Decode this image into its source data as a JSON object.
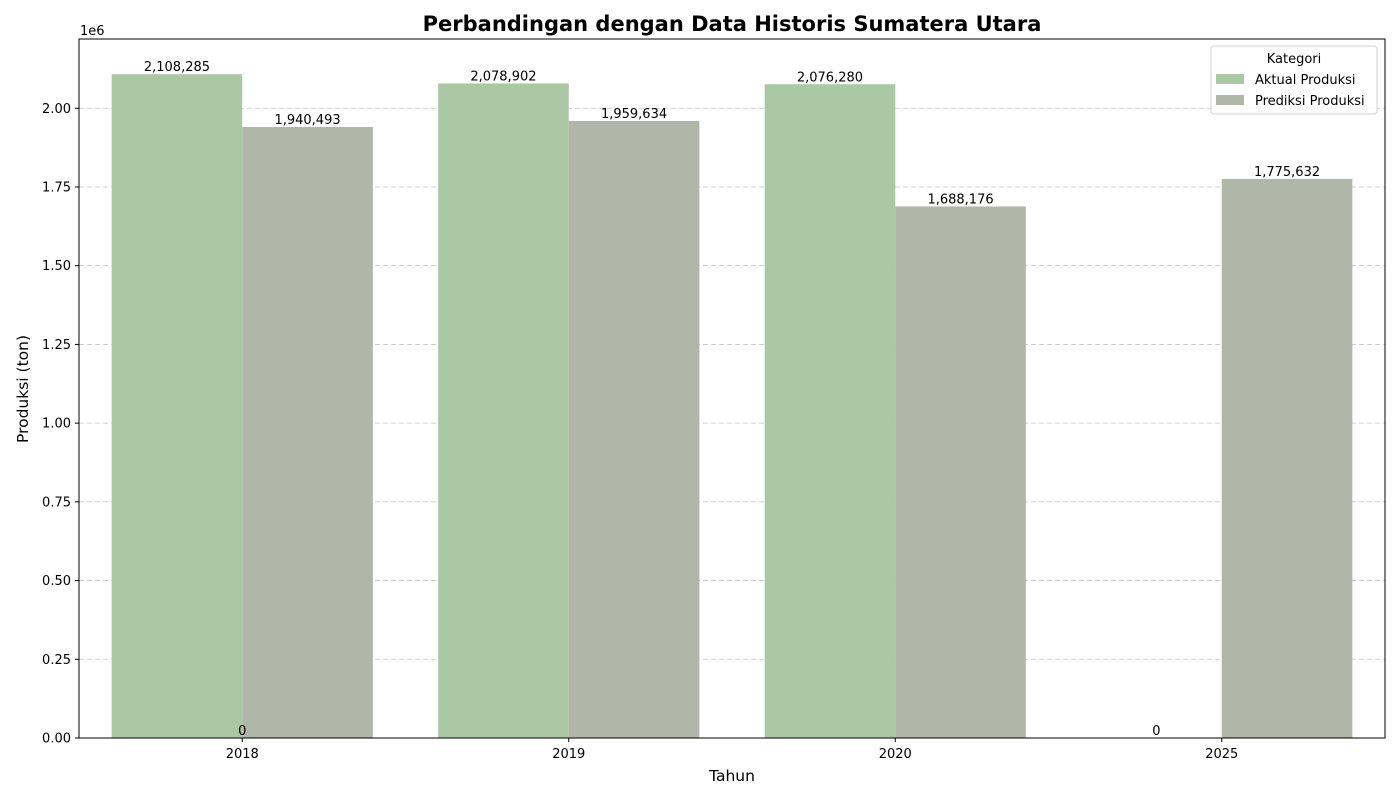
{
  "chart_data": {
    "type": "bar",
    "title": "Perbandingan dengan Data Historis Sumatera Utara",
    "xlabel": "Tahun",
    "ylabel": "Produksi (ton)",
    "y_offset_label": "1e6",
    "ylim": [
      0,
      2220000
    ],
    "yticks": [
      0,
      250000,
      500000,
      750000,
      1000000,
      1250000,
      1500000,
      1750000,
      2000000
    ],
    "ytick_labels": [
      "0.00",
      "0.25",
      "0.50",
      "0.75",
      "1.00",
      "1.25",
      "1.50",
      "1.75",
      "2.00"
    ],
    "grid": true,
    "categories": [
      "2018",
      "2019",
      "2020",
      "2025"
    ],
    "series": [
      {
        "name": "Aktual Produksi",
        "color": "#abc8a5",
        "values": [
          2108285,
          2078902,
          2076280,
          0
        ],
        "labels": [
          "2,108,285",
          "2,078,902",
          "2,076,280",
          "0"
        ]
      },
      {
        "name": "Prediksi Produksi",
        "color": "#b0b6a8",
        "values": [
          1940493,
          1959634,
          1688176,
          1775632
        ],
        "labels": [
          "1,940,493",
          "1,959,634",
          "1,688,176",
          "1,775,632"
        ]
      }
    ],
    "extra_labels": [
      {
        "category": "2018",
        "text": "0"
      }
    ],
    "legend": {
      "title": "Kategori",
      "location": "top-right"
    }
  }
}
